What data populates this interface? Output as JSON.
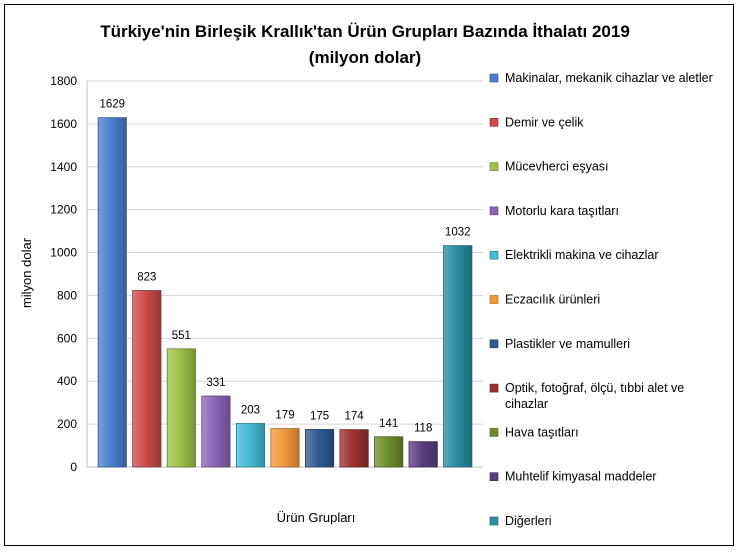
{
  "chart_data": {
    "type": "bar",
    "title": "Türkiye'nin Birleşik Krallık'tan  Ürün Grupları Bazında İthalatı 2019",
    "subtitle": "(milyon dolar)",
    "xlabel": "Ürün Grupları",
    "ylabel": "milyon dolar",
    "ylim": [
      0,
      1800
    ],
    "yticks": [
      0,
      200,
      400,
      600,
      800,
      1000,
      1200,
      1400,
      1600,
      1800
    ],
    "grid": true,
    "legend_position": "right",
    "categories": [
      "Makinalar, mekanik cihazlar ve aletler",
      "Demir ve çelik",
      "Mücevherci eşyası",
      "Motorlu kara taşıtları",
      "Elektrikli makina ve cihazlar",
      "Eczacılık ürünleri",
      "Plastikler ve mamulleri",
      "Optik, fotoğraf, ölçü, tıbbi alet ve cihazlar",
      "Hava taşıtları",
      "Muhtelif kimyasal maddeler",
      "Diğerleri"
    ],
    "legend_lines": [
      [
        "Makinalar, mekanik cihazlar ve aletler"
      ],
      [
        "Demir ve çelik"
      ],
      [
        "Mücevherci eşyası"
      ],
      [
        "Motorlu kara taşıtları"
      ],
      [
        "Elektrikli makina ve cihazlar"
      ],
      [
        "Eczacılık ürünleri"
      ],
      [
        "Plastikler ve mamulleri"
      ],
      [
        "Optik, fotoğraf, ölçü, tıbbi alet ve",
        "cihazlar"
      ],
      [
        "Hava taşıtları"
      ],
      [
        "Muhtelif kimyasal maddeler"
      ],
      [
        "Diğerleri"
      ]
    ],
    "values": [
      1629,
      823,
      551,
      331,
      203,
      179,
      175,
      174,
      141,
      118,
      1032
    ],
    "colors": [
      "#4a7fd0",
      "#cc4b4b",
      "#9dc24a",
      "#8a65b8",
      "#44bcd6",
      "#f29a3a",
      "#2f5a93",
      "#9c3030",
      "#6f8f2c",
      "#5a3f80",
      "#2a8ea5"
    ]
  }
}
